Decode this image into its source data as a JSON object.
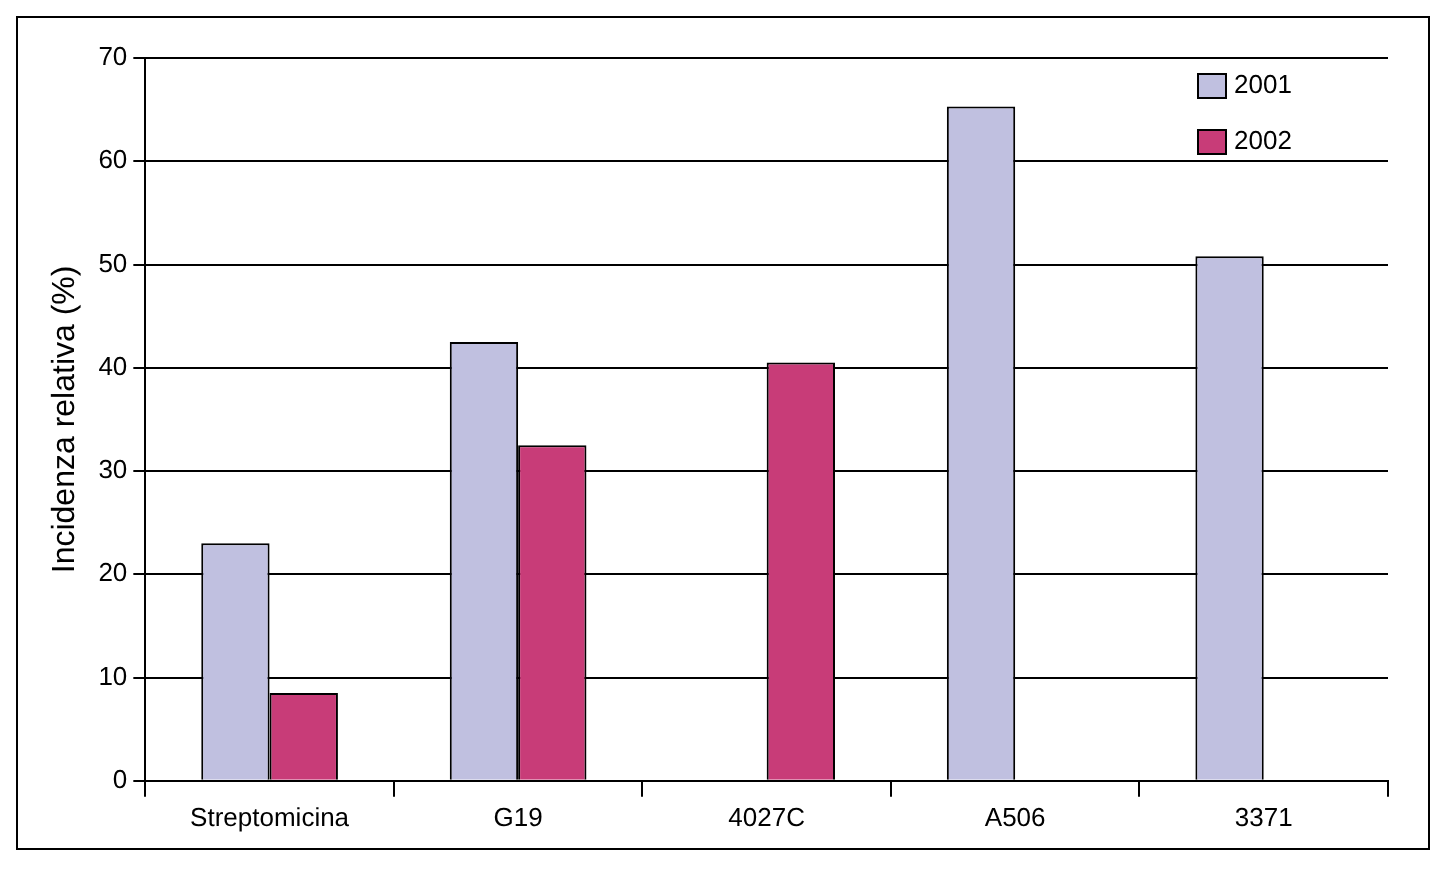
{
  "chart_data": {
    "type": "bar",
    "ylabel": "Incidenza relativa (%)",
    "categories": [
      "Streptomicina",
      "G19",
      "4027C",
      "A506",
      "3371"
    ],
    "series": [
      {
        "name": "2001",
        "color": "#c0c0e0",
        "values": [
          23,
          42.5,
          null,
          65.3,
          50.8
        ]
      },
      {
        "name": "2002",
        "color": "#c83c78",
        "values": [
          8.5,
          32.5,
          40.5,
          null,
          null
        ]
      }
    ],
    "ylim": [
      0,
      70
    ],
    "yticks": [
      0,
      10,
      20,
      30,
      40,
      50,
      60,
      70
    ],
    "grid": "y",
    "legend": "top right"
  }
}
